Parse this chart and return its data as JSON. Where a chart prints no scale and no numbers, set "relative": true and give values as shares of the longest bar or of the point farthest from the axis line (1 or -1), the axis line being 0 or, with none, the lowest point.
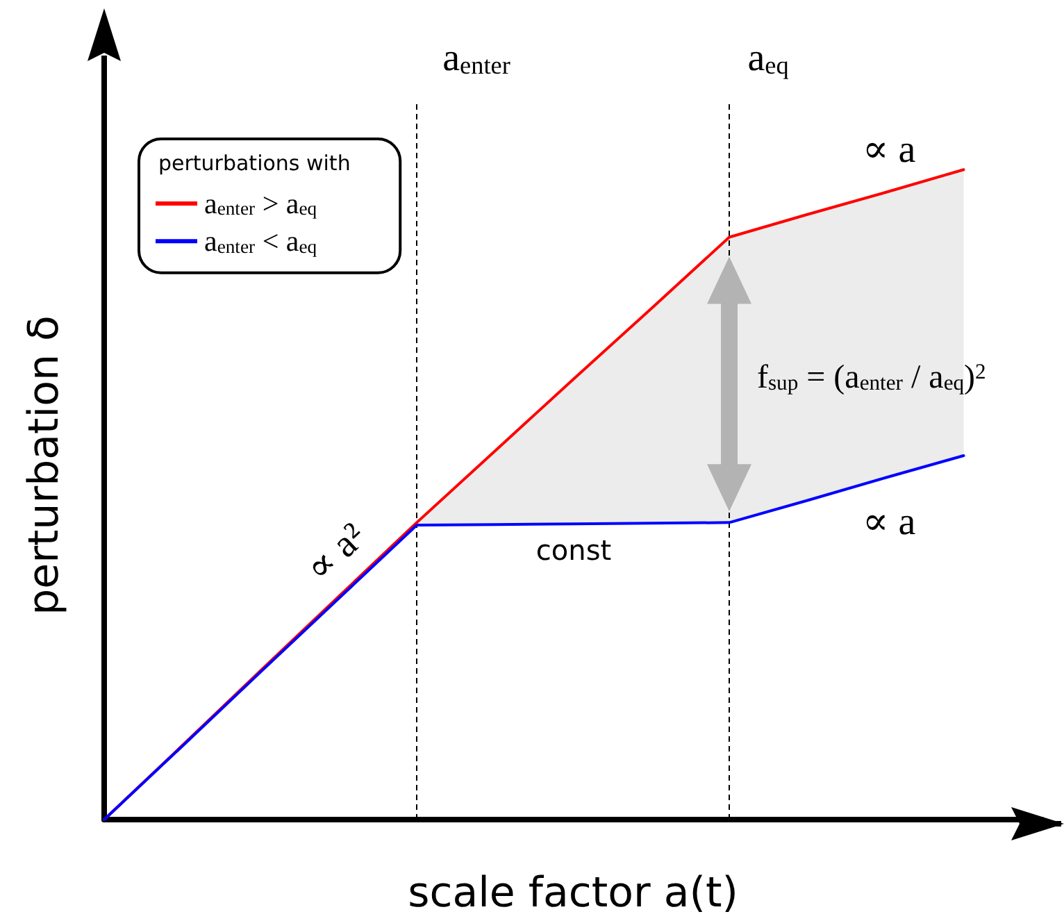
{
  "chart_data": {
    "type": "line",
    "relative": true,
    "xlabel": "scale factor a(t)",
    "ylabel": "perturbation δ",
    "categories": [
      null,
      null,
      null,
      null,
      null,
      null,
      null,
      null,
      null,
      null,
      null,
      null,
      null
    ],
    "grid": false,
    "marker": "none",
    "line_style": "solid",
    "legend": "top left",
    "legend_title": "perturbations with",
    "series": [
      {
        "name": "a$_{enter}$ > a$_{eq}$",
        "color": "#ff0000",
        "values": [
          0,
          0.114,
          0.229,
          0.343,
          0.457,
          0.567,
          0.677,
          0.786,
          0.896,
          0.931,
          0.965,
          1,
          null
        ],
        "lower": [
          null,
          null,
          null,
          null,
          0.453,
          0.454,
          0.455,
          0.456,
          0.457,
          0.491,
          0.526,
          0.56,
          null
        ],
        "upper": [
          null,
          null,
          null,
          null,
          0.457,
          0.567,
          0.677,
          0.786,
          0.896,
          0.931,
          0.965,
          1,
          null
        ]
      },
      {
        "name": "a$_{enter}$ < a$_{eq}$",
        "color": "#0000ff",
        "values": [
          0,
          0.113,
          0.227,
          0.34,
          0.453,
          0.454,
          0.455,
          0.456,
          0.457,
          0.491,
          0.526,
          0.56,
          null
        ]
      }
    ],
    "annotations": [
      "∝ a",
      "∝ a",
      "const",
      "∝ a²",
      "f$_{sup}$ = (a$_{enter}$ / a$_{eq}$)$^{2}$",
      "a$_{enter}$",
      "a$_{eq}$"
    ]
  }
}
